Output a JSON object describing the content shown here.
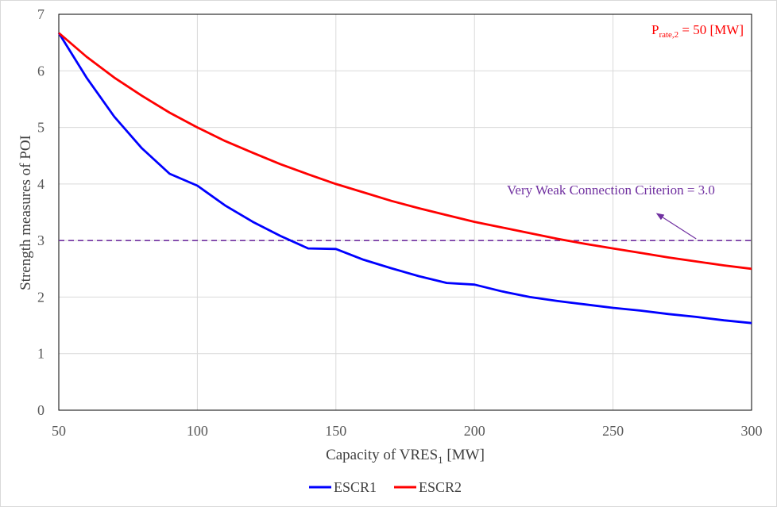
{
  "chart_data": {
    "type": "line",
    "xlabel": {
      "main": "Capacity of VRES",
      "sub": "1",
      "unit": " [MW]"
    },
    "ylabel": "Strength measures of POI",
    "xlim": [
      50,
      300
    ],
    "ylim": [
      0,
      7
    ],
    "xticks": [
      50,
      100,
      150,
      200,
      250,
      300
    ],
    "yticks": [
      0,
      1,
      2,
      3,
      4,
      5,
      6,
      7
    ],
    "grid": true,
    "legend_position": "bottom",
    "series": [
      {
        "name": "ESCR1",
        "color": "#0000ff",
        "x": [
          50,
          60,
          70,
          80,
          90,
          100,
          110,
          120,
          130,
          140,
          150,
          160,
          170,
          180,
          190,
          200,
          210,
          220,
          230,
          240,
          250,
          260,
          270,
          280,
          290,
          300
        ],
        "y": [
          6.67,
          5.88,
          5.19,
          4.63,
          4.18,
          3.97,
          3.62,
          3.33,
          3.08,
          2.86,
          2.85,
          2.66,
          2.51,
          2.37,
          2.25,
          2.22,
          2.1,
          2.0,
          1.93,
          1.87,
          1.81,
          1.76,
          1.7,
          1.65,
          1.59,
          1.54
        ]
      },
      {
        "name": "ESCR2",
        "color": "#ff0000",
        "x": [
          50,
          60,
          70,
          80,
          90,
          100,
          110,
          120,
          130,
          140,
          150,
          160,
          170,
          180,
          190,
          200,
          210,
          220,
          230,
          240,
          250,
          260,
          270,
          280,
          290,
          300
        ],
        "y": [
          6.67,
          6.25,
          5.88,
          5.56,
          5.26,
          5.0,
          4.76,
          4.55,
          4.35,
          4.17,
          4.0,
          3.85,
          3.7,
          3.57,
          3.45,
          3.33,
          3.23,
          3.13,
          3.03,
          2.94,
          2.86,
          2.78,
          2.7,
          2.63,
          2.56,
          2.5
        ]
      }
    ],
    "reference_line": {
      "y": 3.0,
      "color": "#7030a0",
      "style": "dashed"
    },
    "annotations": {
      "criterion": {
        "text": "Very Weak Connection Criterion = 3.0",
        "arrow_from": [
          280,
          3.03
        ],
        "arrow_to": [
          266,
          3.47
        ],
        "color": "#7030a0"
      },
      "rating": {
        "prefix": "P",
        "subscript": "rate,2",
        "suffix": " = 50 [MW]",
        "color": "#ff0000"
      }
    }
  }
}
